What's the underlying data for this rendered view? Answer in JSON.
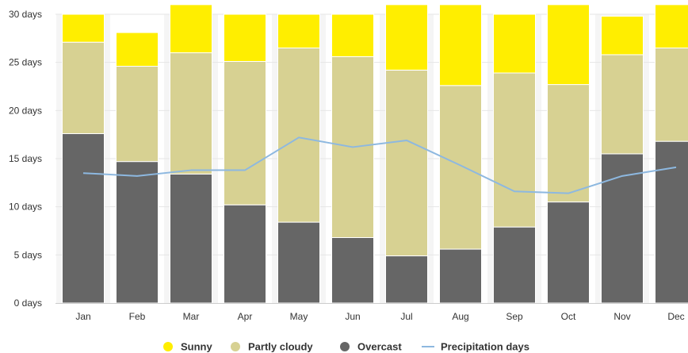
{
  "chart_data": {
    "type": "bar",
    "stacked": true,
    "categories": [
      "Jan",
      "Feb",
      "Mar",
      "Apr",
      "May",
      "Jun",
      "Jul",
      "Aug",
      "Sep",
      "Oct",
      "Nov",
      "Dec"
    ],
    "series": [
      {
        "name": "Overcast",
        "type": "bar",
        "color": "#666666",
        "values": [
          17.6,
          14.7,
          13.4,
          10.2,
          8.4,
          6.8,
          4.9,
          5.6,
          7.9,
          10.5,
          15.5,
          16.8
        ]
      },
      {
        "name": "Partly cloudy",
        "type": "bar",
        "color": "#d7d192",
        "values": [
          9.5,
          9.9,
          12.6,
          14.9,
          18.1,
          18.8,
          19.3,
          17.0,
          16.0,
          12.2,
          10.3,
          9.7
        ]
      },
      {
        "name": "Sunny",
        "type": "bar",
        "color": "#ffee00",
        "values": [
          2.9,
          3.5,
          5.0,
          4.9,
          3.5,
          4.4,
          6.8,
          8.4,
          6.1,
          8.3,
          4.0,
          4.5
        ]
      },
      {
        "name": "Precipitation days",
        "type": "line",
        "color": "#8db8e0",
        "values": [
          13.5,
          13.2,
          13.8,
          13.8,
          17.2,
          16.2,
          16.9,
          14.3,
          11.6,
          11.4,
          13.2,
          14.1
        ]
      }
    ],
    "y_ticks": [
      "0 days",
      "5 days",
      "10 days",
      "15 days",
      "20 days",
      "25 days",
      "30 days"
    ],
    "ylim": [
      0,
      30
    ],
    "grid": true,
    "legend_position": "bottom-center",
    "legend": [
      {
        "name": "Sunny",
        "marker": "circle",
        "color": "#ffee00"
      },
      {
        "name": "Partly cloudy",
        "marker": "circle",
        "color": "#d7d192"
      },
      {
        "name": "Overcast",
        "marker": "circle",
        "color": "#666666"
      },
      {
        "name": "Precipitation days",
        "marker": "line",
        "color": "#8db8e0"
      }
    ],
    "band_color": "#f5f5f5",
    "grid_color": "#e6e6e6",
    "axis_color": "#cccccc"
  }
}
